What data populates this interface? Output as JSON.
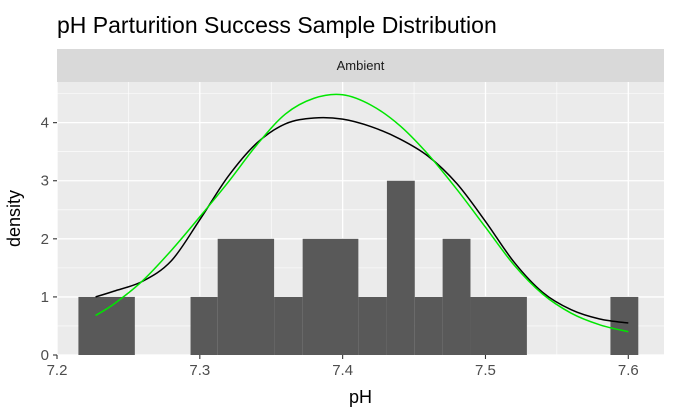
{
  "chart_data": {
    "type": "histogram",
    "title": "pH Parturition Success Sample Distribution",
    "facet_label": "Ambient",
    "xlabel": "pH",
    "ylabel": "density",
    "xlim": [
      7.2,
      7.625
    ],
    "ylim": [
      0,
      4.7
    ],
    "x_ticks": [
      7.2,
      7.3,
      7.4,
      7.5,
      7.6
    ],
    "x_tick_labels": [
      "7.2",
      "7.3",
      "7.4",
      "7.5",
      "7.6"
    ],
    "y_ticks": [
      0,
      1,
      2,
      3,
      4
    ],
    "y_tick_labels": [
      "0",
      "1",
      "2",
      "3",
      "4"
    ],
    "grid": true,
    "bar_color": "#595959",
    "bars": [
      {
        "x0": 7.215,
        "x1": 7.2545,
        "value": 1
      },
      {
        "x0": 7.2935,
        "x1": 7.3125,
        "value": 1
      },
      {
        "x0": 7.3125,
        "x1": 7.352,
        "value": 2
      },
      {
        "x0": 7.352,
        "x1": 7.372,
        "value": 1
      },
      {
        "x0": 7.372,
        "x1": 7.411,
        "value": 2
      },
      {
        "x0": 7.411,
        "x1": 7.431,
        "value": 1
      },
      {
        "x0": 7.431,
        "x1": 7.4505,
        "value": 3
      },
      {
        "x0": 7.4505,
        "x1": 7.47,
        "value": 1
      },
      {
        "x0": 7.47,
        "x1": 7.4895,
        "value": 2
      },
      {
        "x0": 7.4895,
        "x1": 7.529,
        "value": 1
      },
      {
        "x0": 7.5875,
        "x1": 7.607,
        "value": 1
      }
    ],
    "series": [
      {
        "color": "#000000",
        "x": [
          7.227,
          7.24,
          7.26,
          7.28,
          7.3,
          7.32,
          7.34,
          7.36,
          7.38,
          7.4,
          7.42,
          7.44,
          7.46,
          7.48,
          7.5,
          7.52,
          7.54,
          7.56,
          7.58,
          7.6
        ],
        "y": [
          1.0,
          1.1,
          1.27,
          1.62,
          2.33,
          3.08,
          3.65,
          3.98,
          4.08,
          4.06,
          3.93,
          3.72,
          3.42,
          2.95,
          2.3,
          1.6,
          1.08,
          0.78,
          0.62,
          0.55
        ]
      },
      {
        "color": "#00e600",
        "x": [
          7.227,
          7.24,
          7.26,
          7.28,
          7.3,
          7.32,
          7.34,
          7.36,
          7.38,
          7.4,
          7.42,
          7.44,
          7.46,
          7.48,
          7.5,
          7.52,
          7.54,
          7.56,
          7.58,
          7.6
        ],
        "y": [
          0.68,
          0.88,
          1.28,
          1.8,
          2.38,
          2.98,
          3.62,
          4.15,
          4.42,
          4.48,
          4.3,
          3.95,
          3.45,
          2.85,
          2.2,
          1.55,
          1.05,
          0.72,
          0.52,
          0.4
        ]
      }
    ]
  }
}
